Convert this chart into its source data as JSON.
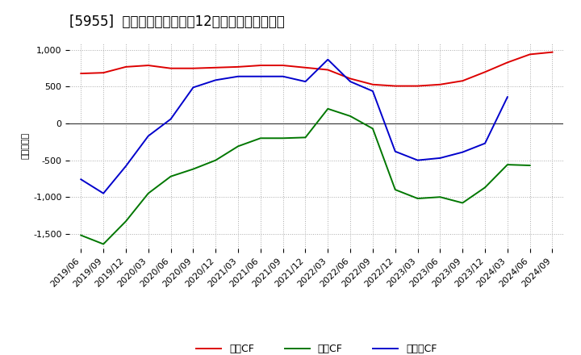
{
  "title": "[5955]  キャッシュフローの12か月移動合計の推移",
  "ylabel": "（百万円）",
  "xlabels": [
    "2019/06",
    "2019/09",
    "2019/12",
    "2020/03",
    "2020/06",
    "2020/09",
    "2020/12",
    "2021/03",
    "2021/06",
    "2021/09",
    "2021/12",
    "2022/03",
    "2022/06",
    "2022/09",
    "2022/12",
    "2023/03",
    "2023/06",
    "2023/09",
    "2023/12",
    "2024/03",
    "2024/06",
    "2024/09"
  ],
  "eigyo_cf": [
    680,
    690,
    770,
    790,
    750,
    750,
    760,
    770,
    790,
    790,
    760,
    730,
    610,
    530,
    510,
    510,
    530,
    580,
    700,
    830,
    940,
    970
  ],
  "toshi_cf": [
    -1520,
    -1640,
    -1330,
    -950,
    -720,
    -620,
    -500,
    -310,
    -200,
    -200,
    -190,
    200,
    100,
    -70,
    -900,
    -1020,
    -1000,
    -1080,
    -870,
    -560,
    -570,
    null
  ],
  "free_cf": [
    -760,
    -950,
    -580,
    -170,
    60,
    490,
    590,
    640,
    640,
    640,
    570,
    870,
    570,
    440,
    -380,
    -500,
    -470,
    -390,
    -270,
    360,
    null,
    null
  ],
  "eigyo_color": "#dd0000",
  "toshi_color": "#007700",
  "free_color": "#0000cc",
  "ylim": [
    -1700,
    1100
  ],
  "yticks": [
    -1500,
    -1000,
    -500,
    0,
    500,
    1000
  ],
  "background_color": "#ffffff",
  "grid_color": "#aaaaaa",
  "title_fontsize": 12,
  "tick_fontsize": 8,
  "legend_labels": [
    "営業CF",
    "投資CF",
    "フリーCF"
  ]
}
